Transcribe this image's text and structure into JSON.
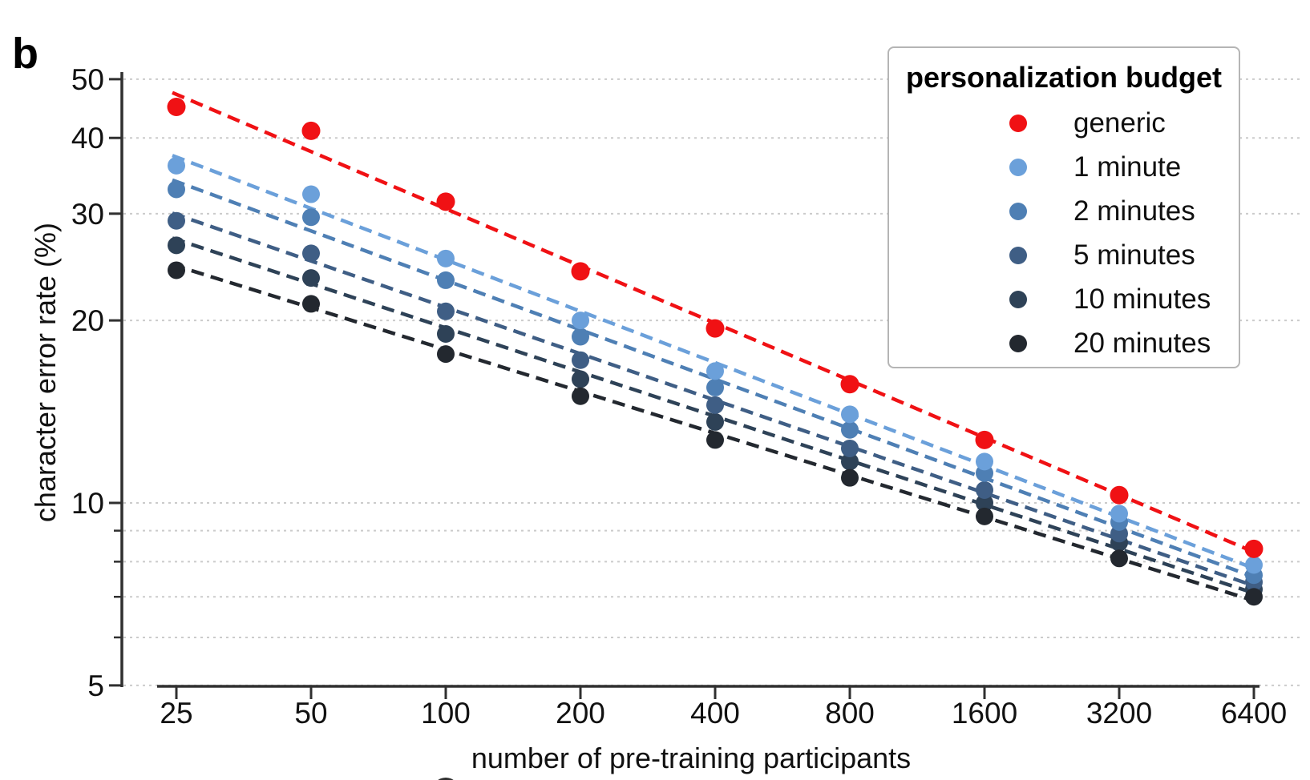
{
  "panel_label": "b",
  "legend": {
    "title": "personalization budget"
  },
  "chart_data": {
    "type": "scatter",
    "title": "",
    "xlabel": "number of pre-training participants",
    "ylabel": "character error rate (%)",
    "x_scale": "log2",
    "y_scale": "log10",
    "x": [
      25,
      50,
      100,
      200,
      400,
      800,
      1600,
      3200,
      6400
    ],
    "xlim": [
      25,
      6400
    ],
    "ylim": [
      5,
      50
    ],
    "y_major_ticks": [
      50,
      40,
      30,
      20,
      10,
      5
    ],
    "y_minor_gridlines": [
      9,
      8,
      7,
      6
    ],
    "gridlines": [
      50,
      40,
      30,
      20,
      10,
      9,
      8,
      7,
      6,
      5
    ],
    "grid": true,
    "grid_style": "dotted",
    "legend_position": "top-right",
    "marker": "dot",
    "trend_line_style": "dashed",
    "axis_color": "#303030",
    "grid_color": "#cbcbcb",
    "series": [
      {
        "name": "generic",
        "color": "#f01114",
        "values": [
          45.0,
          41.1,
          31.4,
          24.1,
          19.4,
          15.7,
          12.7,
          10.3,
          8.4
        ],
        "trend_at_25": 47.2,
        "trend_at_6400": 8.3
      },
      {
        "name": "1 minute",
        "color": "#6ba0da",
        "values": [
          36.0,
          32.3,
          25.3,
          20.0,
          16.5,
          14.0,
          11.7,
          9.6,
          7.9
        ],
        "trend_at_25": 37.2,
        "trend_at_6400": 7.8
      },
      {
        "name": "2 minutes",
        "color": "#4e7fb4",
        "values": [
          32.9,
          29.6,
          23.3,
          18.8,
          15.5,
          13.2,
          11.2,
          9.3,
          7.6
        ],
        "trend_at_25": 33.9,
        "trend_at_6400": 7.55
      },
      {
        "name": "5 minutes",
        "color": "#3f5e85",
        "values": [
          29.2,
          25.8,
          20.7,
          17.2,
          14.5,
          12.3,
          10.5,
          8.9,
          7.4
        ],
        "trend_at_25": 29.9,
        "trend_at_6400": 7.3
      },
      {
        "name": "10 minutes",
        "color": "#2e4257",
        "values": [
          26.6,
          23.5,
          19.0,
          16.0,
          13.6,
          11.7,
          10.0,
          8.6,
          7.2
        ],
        "trend_at_25": 27.2,
        "trend_at_6400": 7.1
      },
      {
        "name": "20 minutes",
        "color": "#23282f",
        "values": [
          24.2,
          21.3,
          17.6,
          15.0,
          12.7,
          11.0,
          9.5,
          8.1,
          7.0
        ],
        "trend_at_25": 24.6,
        "trend_at_6400": 6.9
      }
    ]
  }
}
